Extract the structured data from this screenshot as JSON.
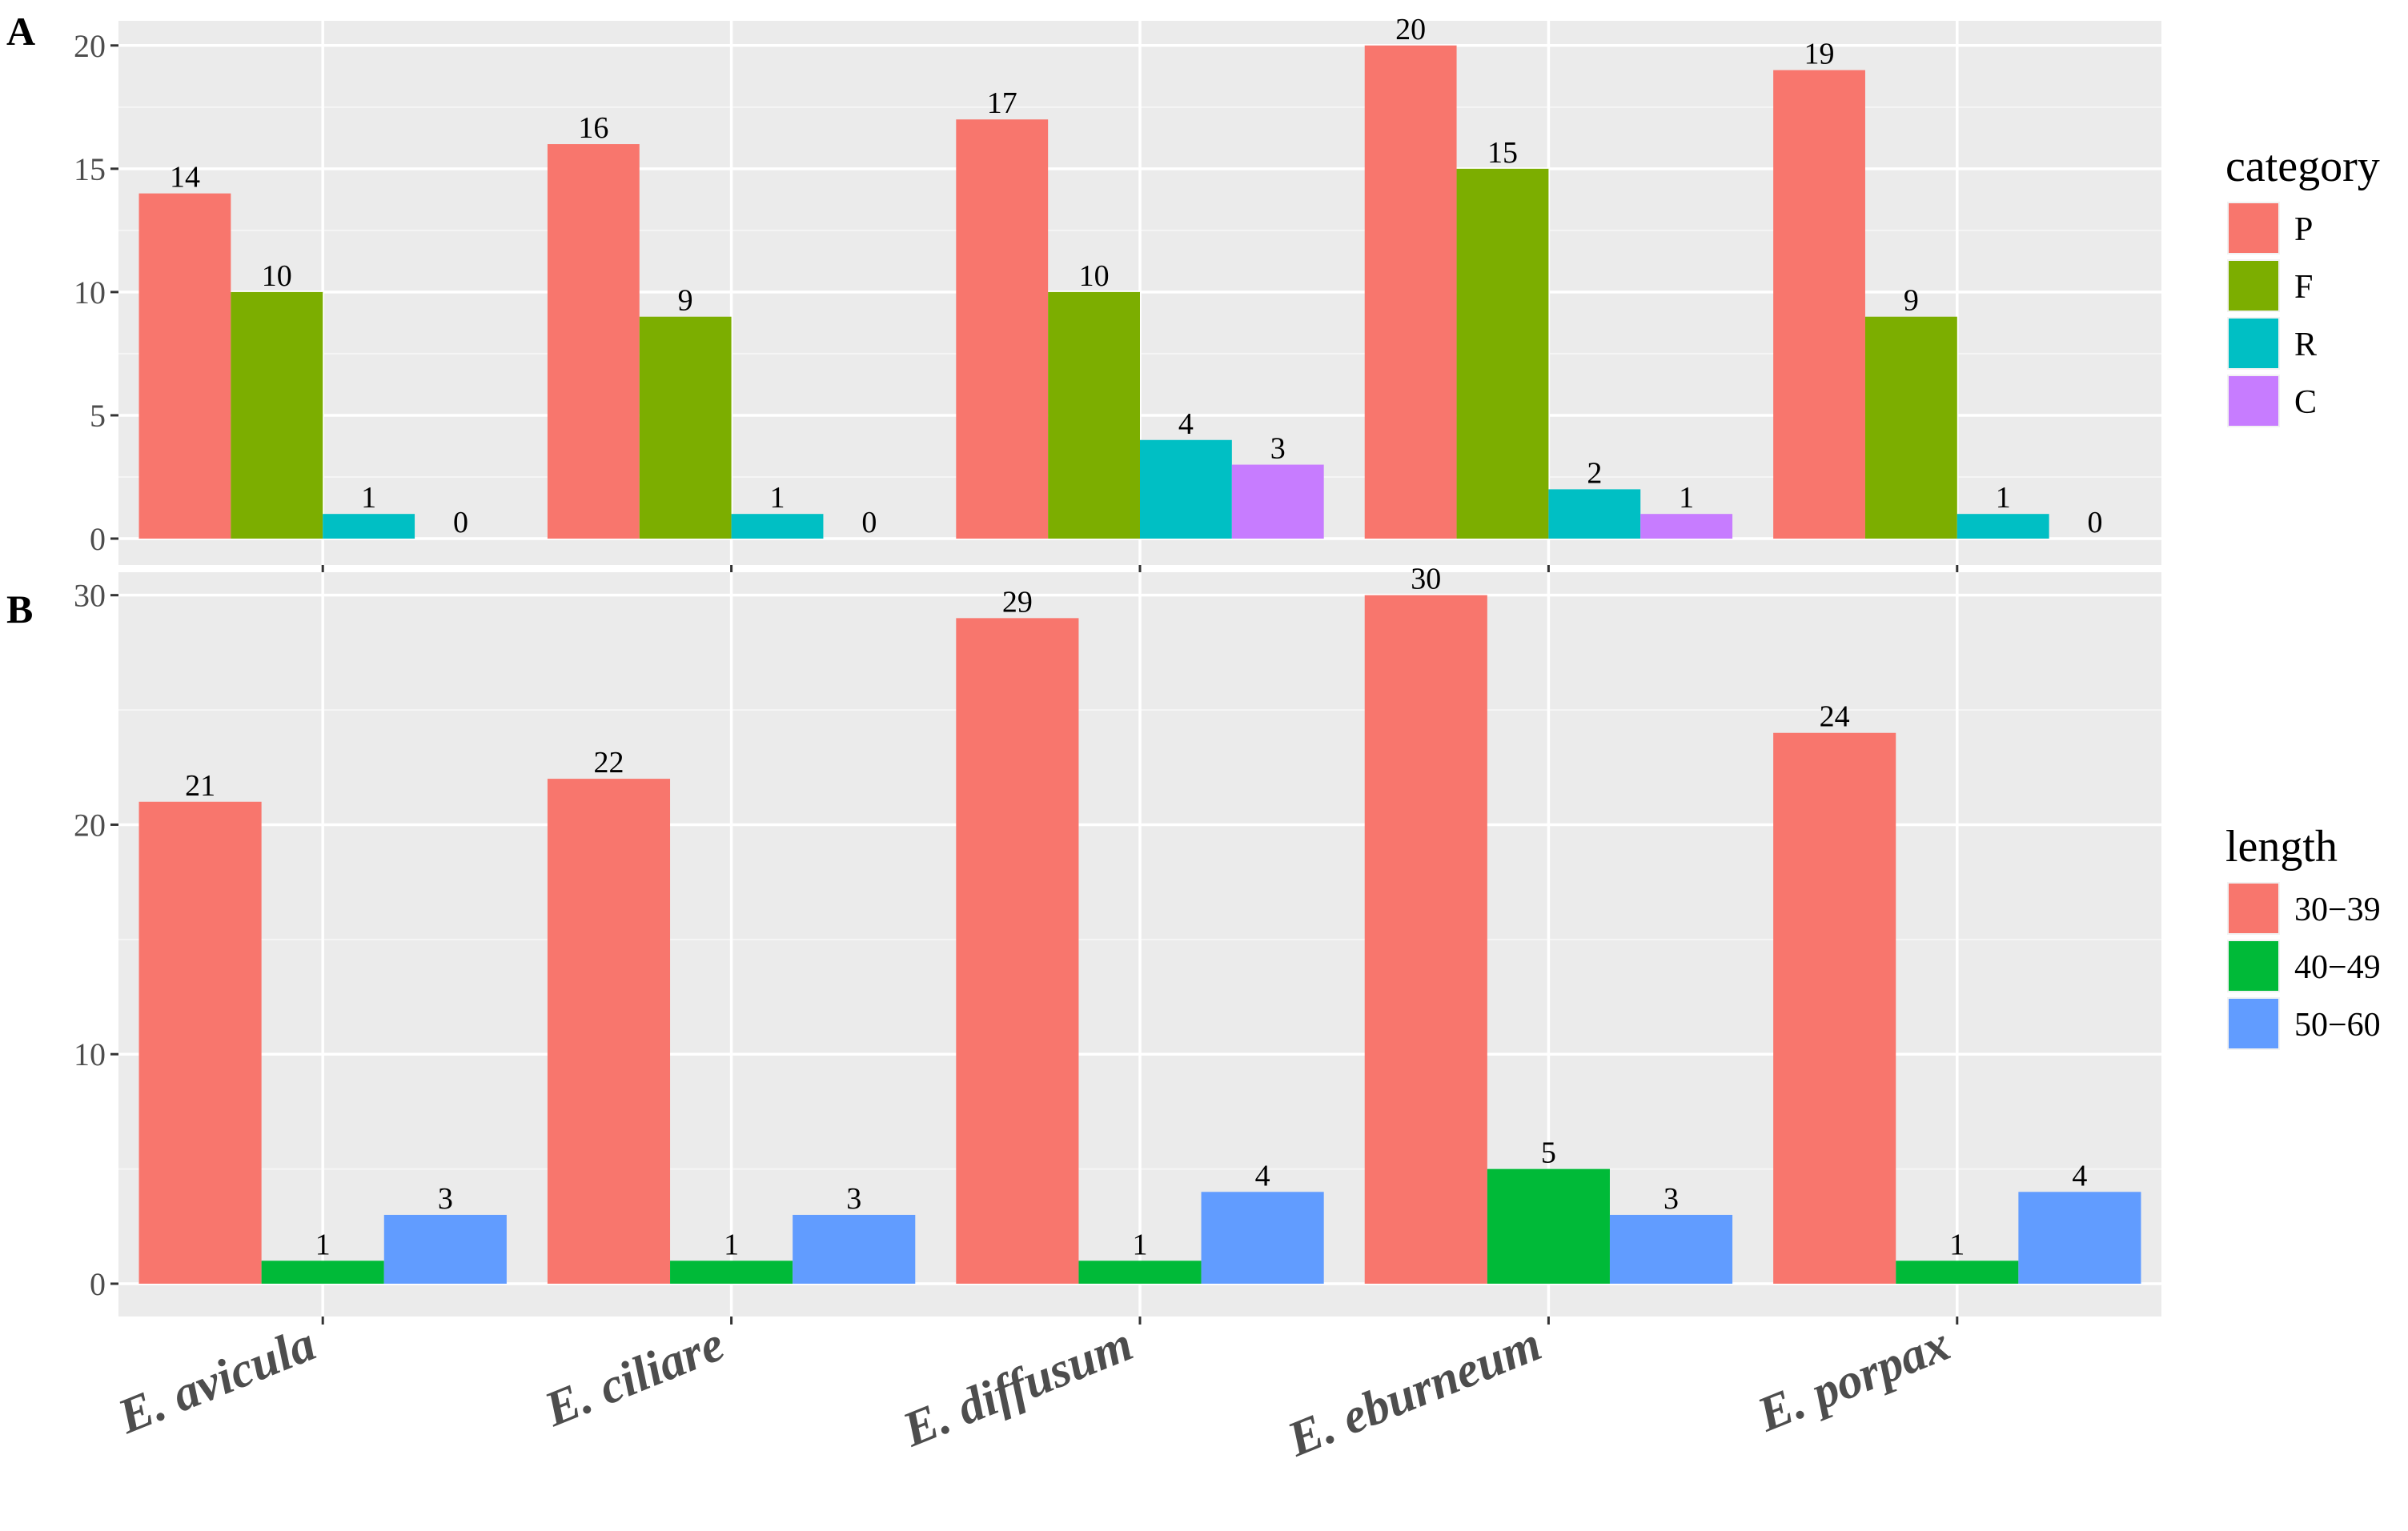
{
  "chart_data": [
    {
      "panel": "A",
      "type": "bar",
      "categories": [
        "E. avicula",
        "E. ciliare",
        "E. diffusum",
        "E. eburneum",
        "E. porpax"
      ],
      "ylim": [
        0,
        21
      ],
      "yticks": [
        0,
        5,
        10,
        15,
        20
      ],
      "legend_title": "category",
      "series": [
        {
          "name": "P",
          "color": "#F8766D",
          "values": [
            14,
            16,
            17,
            20,
            19
          ]
        },
        {
          "name": "F",
          "color": "#7CAE00",
          "values": [
            10,
            9,
            10,
            15,
            9
          ]
        },
        {
          "name": "R",
          "color": "#00BFC4",
          "values": [
            1,
            1,
            4,
            2,
            1
          ]
        },
        {
          "name": "C",
          "color": "#C77CFF",
          "values": [
            0,
            0,
            3,
            1,
            0
          ]
        }
      ],
      "grid": true,
      "legend_position": "right"
    },
    {
      "panel": "B",
      "type": "bar",
      "categories": [
        "E. avicula",
        "E. ciliare",
        "E. diffusum",
        "E. eburneum",
        "E. porpax"
      ],
      "ylim": [
        0,
        31
      ],
      "yticks": [
        0,
        10,
        20,
        30
      ],
      "legend_title": "length",
      "series": [
        {
          "name": "30−39",
          "color": "#F8766D",
          "values": [
            21,
            22,
            29,
            30,
            24
          ]
        },
        {
          "name": "40−49",
          "color": "#00BA38",
          "values": [
            1,
            1,
            1,
            5,
            1
          ]
        },
        {
          "name": "50−60",
          "color": "#619CFF",
          "values": [
            3,
            3,
            4,
            3,
            4
          ]
        }
      ],
      "grid": true,
      "legend_position": "right"
    }
  ],
  "colors": {
    "panel_background": "#EBEBEB",
    "grid_major": "#FFFFFF",
    "grid_minor": "#F5F5F5"
  }
}
